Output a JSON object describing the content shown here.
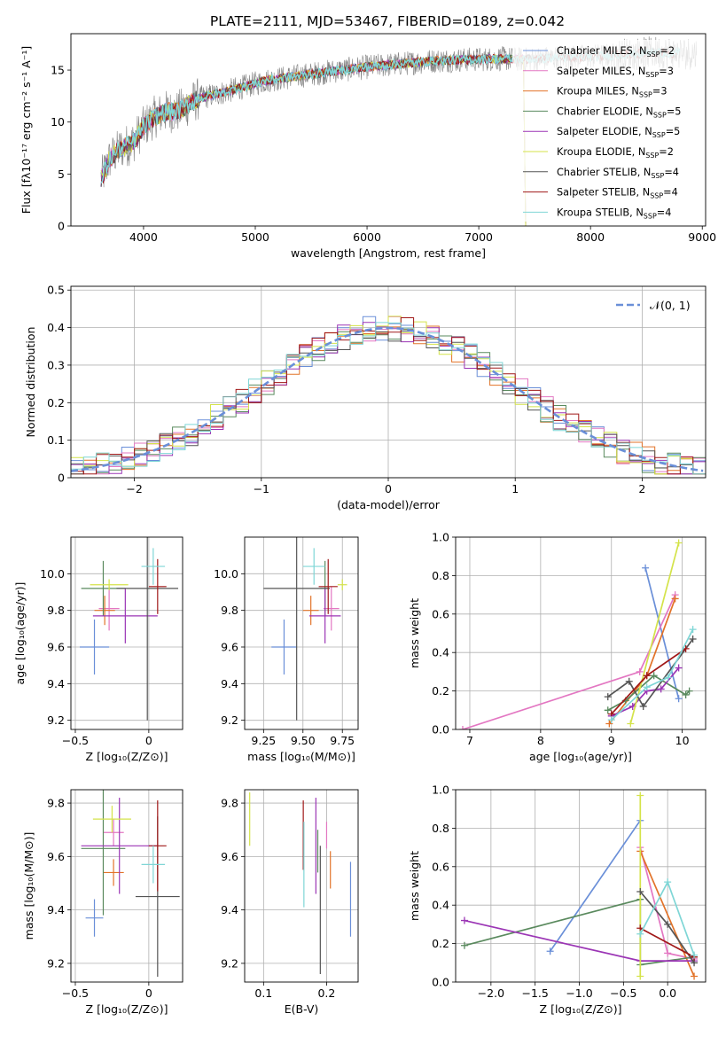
{
  "figure_title": "PLATE=2111, MJD=53467, FIBERID=0189, z=0.042",
  "colors": {
    "Chabrier MILES": "#6a8fd8",
    "Salpeter MILES": "#e377c2",
    "Kroupa MILES": "#e27329",
    "Chabrier ELODIE": "#5a8a5e",
    "Salpeter ELODIE": "#9b35b5",
    "Kroupa ELODIE": "#d4e34a",
    "Chabrier STELIB": "#555555",
    "Salpeter STELIB": "#a01818",
    "Kroupa STELIB": "#7fd6d6",
    "data": "#808080",
    "normal": "#6a8fd8"
  },
  "chart_data": [
    {
      "type": "line",
      "panel": "spectrum",
      "xlabel": "wavelength [Angstrom, rest frame]",
      "ylabel": "Flux [fλ10⁻¹⁷ erg cm⁻² s⁻¹ A⁻¹]",
      "xlim": [
        3350,
        9030
      ],
      "ylim": [
        0,
        18.5
      ],
      "xticks": [
        4000,
        5000,
        6000,
        7000,
        8000,
        9000
      ],
      "yticks": [
        0,
        5,
        10,
        15
      ],
      "legend_position": "right",
      "legend": [
        {
          "label": "Chabrier MILES, N",
          "n": "2"
        },
        {
          "label": "Salpeter MILES, N",
          "n": "3"
        },
        {
          "label": "Kroupa MILES, N",
          "n": "3"
        },
        {
          "label": "Chabrier ELODIE, N",
          "n": "5"
        },
        {
          "label": "Salpeter ELODIE, N",
          "n": "5"
        },
        {
          "label": "Kroupa ELODIE, N",
          "n": "2"
        },
        {
          "label": "Chabrier STELIB, N",
          "n": "4"
        },
        {
          "label": "Salpeter STELIB, N",
          "n": "4"
        },
        {
          "label": "Kroupa STELIB, N",
          "n": "4"
        }
      ],
      "legend_sub": "SSP",
      "continuum": {
        "x": [
          3620,
          3700,
          3800,
          3900,
          4000,
          4100,
          4200,
          4300,
          4500,
          4700,
          4900,
          5100,
          5300,
          5500,
          5700,
          6000,
          6300,
          6600,
          6900,
          7200,
          7400
        ],
        "y": [
          4.5,
          6.5,
          7.5,
          8.0,
          9.5,
          10.5,
          11.0,
          11.0,
          12.3,
          12.8,
          13.4,
          14.0,
          14.3,
          14.6,
          14.9,
          15.3,
          15.6,
          15.9,
          16.0,
          16.1,
          16.0
        ]
      },
      "stelib_continuum": {
        "x": [
          7400,
          7700,
          8000,
          8300,
          8600,
          8800
        ],
        "y": [
          16.0,
          16.2,
          16.3,
          16.5,
          16.7,
          16.6
        ]
      }
    },
    {
      "type": "line",
      "panel": "residual_histogram",
      "xlabel": "(data-model)/error",
      "ylabel": "Normed distribution",
      "xlim": [
        -2.5,
        2.5
      ],
      "ylim": [
        0,
        0.51
      ],
      "xticks": [
        -2,
        -1,
        0,
        1,
        2
      ],
      "yticks": [
        0.0,
        0.1,
        0.2,
        0.3,
        0.4,
        0.5
      ],
      "legend": [
        "𝒩(0, 1)"
      ],
      "legend_position": "upper right",
      "bin_width": 0.1
    },
    {
      "type": "scatter",
      "panel": "age_vs_Z",
      "xlabel": "Z [log₁₀(Z/Z⊙)]",
      "ylabel": "age  [log₁₀(age/yr)]",
      "xlim": [
        -0.53,
        0.23
      ],
      "ylim": [
        9.15,
        10.2
      ],
      "xticks": [
        -0.5,
        0.0
      ],
      "yticks": [
        9.2,
        9.4,
        9.6,
        9.8,
        10.0
      ],
      "points": [
        {
          "name": "Chabrier MILES",
          "x": -0.37,
          "xerr": 0.1,
          "y": 9.6,
          "yerr": 0.15
        },
        {
          "name": "Salpeter MILES",
          "x": -0.27,
          "xerr": 0.07,
          "y": 9.81,
          "yerr": 0.12
        },
        {
          "name": "Kroupa MILES",
          "x": -0.3,
          "xerr": 0.07,
          "y": 9.8,
          "yerr": 0.08
        },
        {
          "name": "Chabrier ELODIE",
          "x": -0.31,
          "xerr": 0.15,
          "y": 9.92,
          "yerr": 0.15
        },
        {
          "name": "Salpeter ELODIE",
          "x": -0.16,
          "xerr": 0.22,
          "y": 9.77,
          "yerr": 0.15
        },
        {
          "name": "Kroupa ELODIE",
          "x": -0.27,
          "xerr": 0.13,
          "y": 9.94,
          "yerr": 0.03
        },
        {
          "name": "Chabrier STELIB",
          "x": -0.01,
          "xerr": 0.21,
          "y": 9.92,
          "yerr": 0.72
        },
        {
          "name": "Salpeter STELIB",
          "x": 0.06,
          "xerr": 0.06,
          "y": 9.93,
          "yerr": 0.15
        },
        {
          "name": "Kroupa STELIB",
          "x": 0.03,
          "xerr": 0.08,
          "y": 10.04,
          "yerr": 0.1
        }
      ]
    },
    {
      "type": "scatter",
      "panel": "age_vs_mass",
      "xlabel": "mass [log₁₀(M/M⊙)]",
      "ylabel": "",
      "xlim": [
        9.13,
        9.85
      ],
      "ylim": [
        9.15,
        10.2
      ],
      "xticks": [
        9.25,
        9.5,
        9.75
      ],
      "tick_labels": [
        "9.25",
        "9.50",
        "9.75"
      ],
      "yticks": [
        9.2,
        9.4,
        9.6,
        9.8,
        10.0
      ],
      "points": [
        {
          "name": "Chabrier MILES",
          "x": 9.38,
          "xerr": 0.08,
          "y": 9.6,
          "yerr": 0.15
        },
        {
          "name": "Salpeter MILES",
          "x": 9.68,
          "xerr": 0.05,
          "y": 9.81,
          "yerr": 0.12
        },
        {
          "name": "Kroupa MILES",
          "x": 9.55,
          "xerr": 0.05,
          "y": 9.8,
          "yerr": 0.08
        },
        {
          "name": "Chabrier ELODIE",
          "x": 9.64,
          "xerr": 0.03,
          "y": 9.92,
          "yerr": 0.15
        },
        {
          "name": "Salpeter ELODIE",
          "x": 9.64,
          "xerr": 0.1,
          "y": 9.77,
          "yerr": 0.15
        },
        {
          "name": "Kroupa ELODIE",
          "x": 9.75,
          "xerr": 0.03,
          "y": 9.94,
          "yerr": 0.03
        },
        {
          "name": "Chabrier STELIB",
          "x": 9.46,
          "xerr": 0.21,
          "y": 9.92,
          "yerr": 0.72
        },
        {
          "name": "Salpeter STELIB",
          "x": 9.66,
          "xerr": 0.06,
          "y": 9.93,
          "yerr": 0.15
        },
        {
          "name": "Kroupa STELIB",
          "x": 9.57,
          "xerr": 0.07,
          "y": 10.04,
          "yerr": 0.1
        }
      ]
    },
    {
      "type": "line",
      "panel": "mass_weight_vs_age",
      "xlabel": "age  [log₁₀(age/yr)]",
      "ylabel": "mass weight",
      "xlim": [
        6.8,
        10.33
      ],
      "ylim": [
        0,
        1.0
      ],
      "xticks": [
        7,
        8,
        9,
        10
      ],
      "yticks": [
        0.0,
        0.2,
        0.4,
        0.6,
        0.8,
        1.0
      ],
      "series": [
        {
          "name": "Chabrier MILES",
          "x": [
            9.48,
            9.95
          ],
          "y": [
            0.84,
            0.16
          ]
        },
        {
          "name": "Salpeter MILES",
          "x": [
            6.9,
            9.4,
            9.9
          ],
          "y": [
            0.0,
            0.3,
            0.7
          ]
        },
        {
          "name": "Kroupa MILES",
          "x": [
            8.97,
            9.5,
            9.9
          ],
          "y": [
            0.03,
            0.28,
            0.68
          ]
        },
        {
          "name": "Chabrier ELODIE",
          "x": [
            8.95,
            9.2,
            9.6,
            10.05,
            10.1
          ],
          "y": [
            0.1,
            0.15,
            0.28,
            0.18,
            0.2
          ]
        },
        {
          "name": "Salpeter ELODIE",
          "x": [
            9.0,
            9.3,
            9.5,
            9.7,
            9.95
          ],
          "y": [
            0.07,
            0.12,
            0.2,
            0.21,
            0.32
          ]
        },
        {
          "name": "Kroupa ELODIE",
          "x": [
            9.27,
            9.95
          ],
          "y": [
            0.03,
            0.97
          ]
        },
        {
          "name": "Chabrier STELIB",
          "x": [
            8.95,
            9.25,
            9.45,
            10.15
          ],
          "y": [
            0.17,
            0.25,
            0.12,
            0.47
          ]
        },
        {
          "name": "Salpeter STELIB",
          "x": [
            9.0,
            9.5,
            10.05
          ],
          "y": [
            0.08,
            0.28,
            0.42
          ]
        },
        {
          "name": "Kroupa STELIB",
          "x": [
            9.0,
            9.5,
            9.8,
            10.15
          ],
          "y": [
            0.05,
            0.22,
            0.27,
            0.52
          ]
        }
      ]
    },
    {
      "type": "scatter",
      "panel": "mass_vs_Z",
      "xlabel": "Z [log₁₀(Z/Z⊙)]",
      "ylabel": "mass [log₁₀(M/M⊙)]",
      "xlim": [
        -0.53,
        0.23
      ],
      "ylim": [
        9.13,
        9.85
      ],
      "xticks": [
        -0.5,
        0.0
      ],
      "yticks": [
        9.2,
        9.4,
        9.6,
        9.8
      ],
      "points": [
        {
          "name": "Chabrier MILES",
          "x": -0.37,
          "xerr": 0.06,
          "y": 9.37,
          "yerr": 0.07
        },
        {
          "name": "Salpeter MILES",
          "x": -0.24,
          "xerr": 0.07,
          "y": 9.69,
          "yerr": 0.05
        },
        {
          "name": "Kroupa MILES",
          "x": -0.24,
          "xerr": 0.07,
          "y": 9.54,
          "yerr": 0.05
        },
        {
          "name": "Chabrier ELODIE",
          "x": -0.31,
          "xerr": 0.15,
          "y": 9.63,
          "yerr": 0.25
        },
        {
          "name": "Salpeter ELODIE",
          "x": -0.2,
          "xerr": 0.26,
          "y": 9.64,
          "yerr": 0.18
        },
        {
          "name": "Kroupa ELODIE",
          "x": -0.25,
          "xerr": 0.13,
          "y": 9.74,
          "yerr": 0.05
        },
        {
          "name": "Chabrier STELIB",
          "x": 0.06,
          "xerr": 0.15,
          "y": 9.45,
          "yerr": 0.3
        },
        {
          "name": "Salpeter STELIB",
          "x": 0.06,
          "xerr": 0.06,
          "y": 9.64,
          "yerr": 0.17
        },
        {
          "name": "Kroupa STELIB",
          "x": 0.03,
          "xerr": 0.08,
          "y": 9.57,
          "yerr": 0.07
        }
      ]
    },
    {
      "type": "scatter",
      "panel": "mass_vs_EBV",
      "xlabel": "E(B-V)",
      "ylabel": "",
      "xlim": [
        0.07,
        0.25
      ],
      "ylim": [
        9.13,
        9.85
      ],
      "xticks": [
        0.1,
        0.2
      ],
      "yticks": [
        9.2,
        9.4,
        9.6,
        9.8
      ],
      "points": [
        {
          "name": "Chabrier MILES",
          "x": 0.238,
          "y": 9.44,
          "yerr": 0.14
        },
        {
          "name": "Salpeter MILES",
          "x": 0.2,
          "y": 9.68,
          "yerr": 0.05
        },
        {
          "name": "Kroupa MILES",
          "x": 0.206,
          "y": 9.55,
          "yerr": 0.07
        },
        {
          "name": "Chabrier ELODIE",
          "x": 0.186,
          "y": 9.62,
          "yerr": 0.08
        },
        {
          "name": "Salpeter ELODIE",
          "x": 0.183,
          "y": 9.64,
          "yerr": 0.18
        },
        {
          "name": "Kroupa ELODIE",
          "x": 0.078,
          "y": 9.74,
          "yerr": 0.1
        },
        {
          "name": "Chabrier STELIB",
          "x": 0.19,
          "y": 9.4,
          "yerr": 0.24
        },
        {
          "name": "Salpeter STELIB",
          "x": 0.163,
          "y": 9.68,
          "yerr": 0.13
        },
        {
          "name": "Kroupa STELIB",
          "x": 0.164,
          "y": 9.57,
          "yerr": 0.16
        }
      ]
    },
    {
      "type": "line",
      "panel": "mass_weight_vs_Z",
      "xlabel": "Z [log₁₀(Z/Z⊙)]",
      "ylabel": "mass weight",
      "xlim": [
        -2.4,
        0.43
      ],
      "ylim": [
        0,
        1.0
      ],
      "xticks": [
        -2.0,
        -1.5,
        -1.0,
        -0.5,
        0.0
      ],
      "tick_labels": [
        "−2.0",
        "−1.5",
        "−1.0",
        "−0.5",
        "0.0"
      ],
      "yticks": [
        0.0,
        0.2,
        0.4,
        0.6,
        0.8,
        1.0
      ],
      "series": [
        {
          "name": "Chabrier MILES",
          "x": [
            -1.33,
            -0.31
          ],
          "y": [
            0.16,
            0.84
          ]
        },
        {
          "name": "Salpeter MILES",
          "x": [
            -0.31,
            0.0,
            0.3
          ],
          "y": [
            0.7,
            0.15,
            0.12
          ]
        },
        {
          "name": "Kroupa MILES",
          "x": [
            -0.31,
            0.3
          ],
          "y": [
            0.68,
            0.03
          ]
        },
        {
          "name": "Chabrier ELODIE",
          "x": [
            -2.3,
            -0.31,
            -0.31,
            0.3
          ],
          "y": [
            0.19,
            0.43,
            0.09,
            0.13
          ]
        },
        {
          "name": "Salpeter ELODIE",
          "x": [
            -2.3,
            -0.31,
            0.3
          ],
          "y": [
            0.32,
            0.11,
            0.11
          ]
        },
        {
          "name": "Kroupa ELODIE",
          "x": [
            -0.31,
            -0.31
          ],
          "y": [
            0.03,
            0.97
          ]
        },
        {
          "name": "Chabrier STELIB",
          "x": [
            -0.31,
            0.0,
            0.3
          ],
          "y": [
            0.47,
            0.3,
            0.1
          ]
        },
        {
          "name": "Salpeter STELIB",
          "x": [
            -0.31,
            0.3
          ],
          "y": [
            0.28,
            0.13
          ]
        },
        {
          "name": "Kroupa STELIB",
          "x": [
            -0.31,
            0.0,
            0.3
          ],
          "y": [
            0.25,
            0.52,
            0.14
          ]
        }
      ]
    }
  ]
}
